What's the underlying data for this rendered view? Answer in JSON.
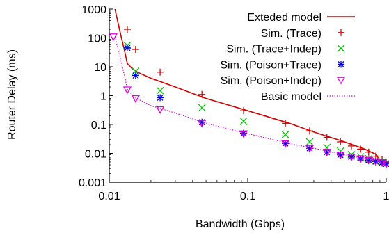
{
  "chart_data": {
    "type": "scatter",
    "xlabel": "Bandwidth (Gbps)",
    "ylabel": "Router Delay (ms)",
    "xscale": "log",
    "yscale": "log",
    "xlim": [
      0.01,
      1
    ],
    "ylim": [
      0.001,
      1000
    ],
    "xticks": [
      0.01,
      0.1,
      1
    ],
    "xtick_labels": [
      "0.01",
      "0.1",
      "1"
    ],
    "yticks": [
      0.001,
      0.01,
      0.1,
      1,
      10,
      100,
      1000
    ],
    "ytick_labels": [
      "0.001",
      "0.01",
      "0.1",
      "1",
      "10",
      "100",
      "1000"
    ],
    "legend_position": "top-right",
    "grid": false,
    "series": [
      {
        "name": "Exteded model",
        "kind": "line",
        "color": "#d40000",
        "x": [
          0.011,
          0.012,
          0.013,
          0.0135,
          0.0145,
          0.016,
          0.02,
          0.03,
          0.05,
          0.1,
          0.2,
          0.3,
          0.5,
          0.7,
          0.85,
          0.9
        ],
        "y": [
          1000,
          150,
          30,
          13,
          9,
          6.5,
          4,
          2,
          0.8,
          0.3,
          0.11,
          0.055,
          0.025,
          0.014,
          0.009,
          0.005
        ]
      },
      {
        "name": "Sim. (Trace)",
        "kind": "marker",
        "marker": "plus",
        "color": "#d40000",
        "x": [
          0.0135,
          0.0155,
          0.0233,
          0.0467,
          0.0933,
          0.187,
          0.28,
          0.373,
          0.467,
          0.56,
          0.653,
          0.747,
          0.84,
          0.933,
          1.0
        ],
        "y": [
          200,
          40,
          6.5,
          1.1,
          0.3,
          0.11,
          0.06,
          0.036,
          0.025,
          0.018,
          0.014,
          0.011,
          0.008,
          0.006,
          0.005
        ]
      },
      {
        "name": "Sim. (Trace+Indep)",
        "kind": "marker",
        "marker": "x",
        "color": "#00c800",
        "x": [
          0.0135,
          0.0155,
          0.0233,
          0.0467,
          0.0933,
          0.187,
          0.28,
          0.373,
          0.467,
          0.56,
          0.653,
          0.747,
          0.84,
          0.933,
          1.0
        ],
        "y": [
          55,
          7.0,
          1.5,
          0.38,
          0.13,
          0.045,
          0.025,
          0.016,
          0.012,
          0.009,
          0.0075,
          0.0065,
          0.0055,
          0.005,
          0.0045
        ]
      },
      {
        "name": "Sim. (Poison+Trace)",
        "kind": "marker",
        "marker": "asterisk",
        "color": "#0000e0",
        "x": [
          0.0135,
          0.0155,
          0.0233,
          0.0467,
          0.0933,
          0.187,
          0.28,
          0.373,
          0.467,
          0.56,
          0.653,
          0.747,
          0.84,
          0.933,
          1.0
        ],
        "y": [
          45,
          5.0,
          0.85,
          0.12,
          0.05,
          0.022,
          0.015,
          0.011,
          0.0088,
          0.0075,
          0.0065,
          0.0058,
          0.0052,
          0.0048,
          0.0043
        ]
      },
      {
        "name": "Sim. (Poison+Indep)",
        "kind": "marker",
        "marker": "triangle-down",
        "color": "#e000e0",
        "x": [
          0.0107,
          0.0135,
          0.0155,
          0.0233,
          0.0467,
          0.0933,
          0.187,
          0.28,
          0.373,
          0.467,
          0.56,
          0.653,
          0.747,
          0.84,
          0.933,
          1.0
        ],
        "y": [
          110,
          1.6,
          0.8,
          0.33,
          0.11,
          0.048,
          0.022,
          0.015,
          0.011,
          0.0088,
          0.0075,
          0.0065,
          0.0058,
          0.0052,
          0.0048,
          0.0043
        ]
      },
      {
        "name": "Basic model",
        "kind": "line",
        "style": "dotted",
        "color": "#e000e0",
        "x": [
          0.011,
          0.012,
          0.013,
          0.0135,
          0.015,
          0.02,
          0.03,
          0.05,
          0.1,
          0.2,
          0.3,
          0.5,
          0.7,
          0.9,
          1.0
        ],
        "y": [
          110,
          20,
          4,
          1.7,
          0.9,
          0.45,
          0.25,
          0.11,
          0.048,
          0.022,
          0.015,
          0.009,
          0.0065,
          0.005,
          0.0043
        ]
      }
    ]
  }
}
